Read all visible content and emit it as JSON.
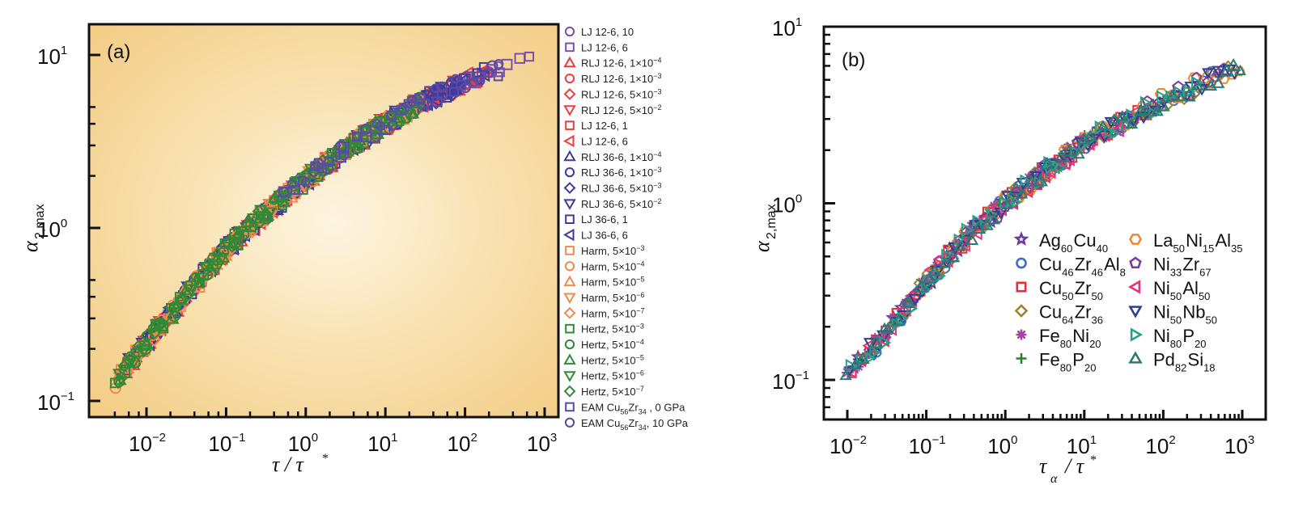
{
  "chart_data": [
    {
      "type": "scatter",
      "panel_label": "(a)",
      "xlabel": "τ / τ*",
      "ylabel": "α2,max",
      "xscale": "log",
      "yscale": "log",
      "xlim": [
        0.0025,
        1300
      ],
      "ylim": [
        0.09,
        15
      ],
      "xticks": [
        {
          "base": "10",
          "exp": "−2",
          "v": 0.01
        },
        {
          "base": "10",
          "exp": "−1",
          "v": 0.1
        },
        {
          "base": "10",
          "exp": "0",
          "v": 1
        },
        {
          "base": "10",
          "exp": "1",
          "v": 10
        },
        {
          "base": "10",
          "exp": "2",
          "v": 100
        },
        {
          "base": "10",
          "exp": "3",
          "v": 1000
        }
      ],
      "yticks": [
        {
          "base": "10",
          "exp": "−1",
          "v": 0.1
        },
        {
          "base": "10",
          "exp": "0",
          "v": 1
        },
        {
          "base": "10",
          "exp": "1",
          "v": 10
        }
      ],
      "background": "gradient-orange",
      "legend_position": "outside-right",
      "master_curve": [
        [
          0.004,
          0.13
        ],
        [
          0.01,
          0.22
        ],
        [
          0.03,
          0.4
        ],
        [
          0.1,
          0.75
        ],
        [
          0.3,
          1.2
        ],
        [
          1,
          1.9
        ],
        [
          3,
          2.8
        ],
        [
          10,
          4.0
        ],
        [
          30,
          5.4
        ],
        [
          100,
          7.0
        ],
        [
          300,
          8.5
        ],
        [
          600,
          10.0
        ]
      ],
      "series": [
        {
          "name": "LJ 12-6, 10",
          "label": "LJ 12-6, 10",
          "marker": "circle",
          "color": "#7a4fb0",
          "x_range": [
            0.5,
            300
          ]
        },
        {
          "name": "LJ 12-6, 6",
          "label": "LJ 12-6, 6",
          "marker": "square",
          "color": "#7a4fb0",
          "x_range": [
            1,
            700
          ]
        },
        {
          "name": "RLJ 12-6, 1e-4",
          "label": "RLJ 12-6, 1×10",
          "exp": "−4",
          "marker": "triangle-up",
          "color": "#ec3c3c",
          "x_range": [
            0.005,
            100
          ]
        },
        {
          "name": "RLJ 12-6, 1e-3",
          "label": "RLJ 12-6, 1×10",
          "exp": "−3",
          "marker": "circle",
          "color": "#ec3c3c",
          "x_range": [
            0.005,
            100
          ]
        },
        {
          "name": "RLJ 12-6, 5e-3",
          "label": "RLJ 12-6, 5×10",
          "exp": "−3",
          "marker": "diamond",
          "color": "#ec3c3c",
          "x_range": [
            0.005,
            100
          ]
        },
        {
          "name": "RLJ 12-6, 5e-2",
          "label": "RLJ 12-6, 5×10",
          "exp": "−2",
          "marker": "triangle-down",
          "color": "#ec3c3c",
          "x_range": [
            0.005,
            100
          ]
        },
        {
          "name": "LJ 12-6, 1",
          "label": "LJ 12-6, 1",
          "marker": "square",
          "color": "#ec3c3c",
          "x_range": [
            0.01,
            200
          ]
        },
        {
          "name": "LJ 12-6, 6 (red)",
          "label": "LJ 12-6, 6",
          "marker": "triangle-left",
          "color": "#ec3c3c",
          "x_range": [
            0.01,
            200
          ]
        },
        {
          "name": "RLJ 36-6, 1e-4",
          "label": "RLJ 36-6, 1×10",
          "exp": "−4",
          "marker": "triangle-up",
          "color": "#3b3ca0",
          "x_range": [
            0.005,
            100
          ]
        },
        {
          "name": "RLJ 36-6, 1e-3",
          "label": "RLJ 36-6, 1×10",
          "exp": "−3",
          "marker": "circle",
          "color": "#3b3ca0",
          "x_range": [
            0.005,
            100
          ]
        },
        {
          "name": "RLJ 36-6, 5e-3",
          "label": "RLJ 36-6, 5×10",
          "exp": "−3",
          "marker": "diamond",
          "color": "#3b3ca0",
          "x_range": [
            0.005,
            100
          ]
        },
        {
          "name": "RLJ 36-6, 5e-2",
          "label": "RLJ 36-6, 5×10",
          "exp": "−2",
          "marker": "triangle-down",
          "color": "#3b3ca0",
          "x_range": [
            0.005,
            100
          ]
        },
        {
          "name": "LJ 36-6, 1",
          "label": "LJ 36-6, 1",
          "marker": "square",
          "color": "#3b3ca0",
          "x_range": [
            0.01,
            200
          ]
        },
        {
          "name": "LJ 36-6, 6",
          "label": "LJ 36-6, 6",
          "marker": "triangle-left",
          "color": "#3b3ca0",
          "x_range": [
            0.01,
            200
          ]
        },
        {
          "name": "Harm, 5e-3",
          "label": "Harm, 5×10",
          "exp": "−3",
          "marker": "square",
          "color": "#f08a4b",
          "x_range": [
            0.004,
            30
          ]
        },
        {
          "name": "Harm, 5e-4",
          "label": "Harm, 5×10",
          "exp": "−4",
          "marker": "circle",
          "color": "#f08a4b",
          "x_range": [
            0.004,
            30
          ]
        },
        {
          "name": "Harm, 5e-5",
          "label": "Harm, 5×10",
          "exp": "−5",
          "marker": "triangle-up",
          "color": "#f08a4b",
          "x_range": [
            0.004,
            30
          ]
        },
        {
          "name": "Harm, 5e-6",
          "label": "Harm, 5×10",
          "exp": "−6",
          "marker": "triangle-down",
          "color": "#f08a4b",
          "x_range": [
            0.004,
            30
          ]
        },
        {
          "name": "Harm, 5e-7",
          "label": "Harm, 5×10",
          "exp": "−7",
          "marker": "diamond",
          "color": "#f08a4b",
          "x_range": [
            0.004,
            30
          ]
        },
        {
          "name": "Hertz, 5e-3",
          "label": "Hertz, 5×10",
          "exp": "−3",
          "marker": "square",
          "color": "#2f8a36",
          "x_range": [
            0.004,
            30
          ]
        },
        {
          "name": "Hertz, 5e-4",
          "label": "Hertz, 5×10",
          "exp": "−4",
          "marker": "circle",
          "color": "#2f8a36",
          "x_range": [
            0.004,
            30
          ]
        },
        {
          "name": "Hertz, 5e-5",
          "label": "Hertz, 5×10",
          "exp": "−5",
          "marker": "triangle-up",
          "color": "#2f8a36",
          "x_range": [
            0.004,
            30
          ]
        },
        {
          "name": "Hertz, 5e-6",
          "label": "Hertz, 5×10",
          "exp": "−6",
          "marker": "triangle-down",
          "color": "#2f8a36",
          "x_range": [
            0.004,
            30
          ]
        },
        {
          "name": "Hertz, 5e-7",
          "label": "Hertz, 5×10",
          "exp": "−7",
          "marker": "diamond",
          "color": "#2f8a36",
          "x_range": [
            0.004,
            30
          ]
        },
        {
          "name": "EAM Cu56Zr34, 0 GPa",
          "label": "EAM Cu",
          "sub1": "56",
          "mid": "Zr",
          "sub2": "34",
          "tail": " , 0 GPa",
          "marker": "square",
          "color": "#5a4aa8",
          "x_range": [
            0.5,
            300
          ]
        },
        {
          "name": "EAM Cu56Zr34, 10 GPa",
          "label": "EAM Cu",
          "sub1": "56",
          "mid": "Zr",
          "sub2": "34",
          "tail": ", 10 GPa",
          "marker": "circle",
          "color": "#5a4aa8",
          "x_range": [
            0.5,
            300
          ]
        }
      ]
    },
    {
      "type": "scatter",
      "panel_label": "(b)",
      "xlabel": "τα / τ*",
      "ylabel": "α2,max",
      "xscale": "log",
      "yscale": "log",
      "xlim": [
        0.005,
        1400
      ],
      "ylim": [
        0.06,
        10
      ],
      "xticks": [
        {
          "base": "10",
          "exp": "−2",
          "v": 0.01
        },
        {
          "base": "10",
          "exp": "−1",
          "v": 0.1
        },
        {
          "base": "10",
          "exp": "0",
          "v": 1
        },
        {
          "base": "10",
          "exp": "1",
          "v": 10
        },
        {
          "base": "10",
          "exp": "2",
          "v": 100
        },
        {
          "base": "10",
          "exp": "3",
          "v": 1000
        }
      ],
      "yticks": [
        {
          "base": "10",
          "exp": "−1",
          "v": 0.1
        },
        {
          "base": "10",
          "exp": "0",
          "v": 1
        },
        {
          "base": "10",
          "exp": "1",
          "v": 10
        }
      ],
      "legend_position": "inside-lower-right",
      "master_curve": [
        [
          0.009,
          0.1
        ],
        [
          0.03,
          0.18
        ],
        [
          0.1,
          0.36
        ],
        [
          0.3,
          0.62
        ],
        [
          1,
          1.0
        ],
        [
          3,
          1.5
        ],
        [
          10,
          2.2
        ],
        [
          30,
          2.9
        ],
        [
          100,
          3.8
        ],
        [
          300,
          4.8
        ],
        [
          1000,
          6.0
        ]
      ],
      "series": [
        {
          "name": "Ag60Cu40",
          "parts": [
            [
              "Ag",
              "60"
            ],
            [
              "Cu",
              "40"
            ]
          ],
          "marker": "star",
          "color": "#6a3d9a",
          "x_range": [
            0.01,
            30
          ]
        },
        {
          "name": "Cu46Zr46Al8",
          "parts": [
            [
              "Cu",
              "46"
            ],
            [
              "Zr",
              "46"
            ],
            [
              "Al",
              "8"
            ]
          ],
          "marker": "circle",
          "color": "#3a6fc4",
          "x_range": [
            0.02,
            600
          ]
        },
        {
          "name": "Cu50Zr50",
          "parts": [
            [
              "Cu",
              "50"
            ],
            [
              "Zr",
              "50"
            ]
          ],
          "marker": "square",
          "color": "#e2313a",
          "x_range": [
            0.01,
            100
          ]
        },
        {
          "name": "Cu64Zr36",
          "parts": [
            [
              "Cu",
              "64"
            ],
            [
              "Zr",
              "36"
            ]
          ],
          "marker": "diamond",
          "color": "#9c8430",
          "x_range": [
            0.02,
            800
          ]
        },
        {
          "name": "Fe80Ni20",
          "parts": [
            [
              "Fe",
              "80"
            ],
            [
              "Ni",
              "20"
            ]
          ],
          "marker": "asterisk",
          "color": "#a0489c",
          "x_range": [
            0.01,
            10
          ]
        },
        {
          "name": "Fe80P20",
          "parts": [
            [
              "Fe",
              "80"
            ],
            [
              "P",
              "20"
            ]
          ],
          "marker": "plus",
          "color": "#2f7d32",
          "x_range": [
            0.015,
            200
          ]
        },
        {
          "name": "La50Ni15Al35",
          "parts": [
            [
              "La",
              "50"
            ],
            [
              "Ni",
              "15"
            ],
            [
              "Al",
              "35"
            ]
          ],
          "marker": "hexagon",
          "color": "#f0892d",
          "x_range": [
            0.05,
            1100
          ]
        },
        {
          "name": "Ni33Zr67",
          "parts": [
            [
              "Ni",
              "33"
            ],
            [
              "Zr",
              "67"
            ]
          ],
          "marker": "pentagon",
          "color": "#7d3a9a",
          "x_range": [
            0.05,
            700
          ]
        },
        {
          "name": "Ni50Al50",
          "parts": [
            [
              "Ni",
              "50"
            ],
            [
              "Al",
              "50"
            ]
          ],
          "marker": "triangle-left",
          "color": "#e8317a",
          "x_range": [
            0.01,
            50
          ]
        },
        {
          "name": "Ni50Nb50",
          "parts": [
            [
              "Ni",
              "50"
            ],
            [
              "Nb",
              "50"
            ]
          ],
          "marker": "triangle-down",
          "color": "#2f3f8f",
          "x_range": [
            0.01,
            1000
          ]
        },
        {
          "name": "Ni80P20",
          "parts": [
            [
              "Ni",
              "80"
            ],
            [
              "P",
              "20"
            ]
          ],
          "marker": "triangle-right",
          "color": "#22a38a",
          "x_range": [
            0.01,
            300
          ]
        },
        {
          "name": "Pd82Si18",
          "parts": [
            [
              "Pd",
              "82"
            ],
            [
              "Si",
              "18"
            ]
          ],
          "marker": "triangle-up",
          "color": "#2b7a78",
          "x_range": [
            0.009,
            1200
          ]
        }
      ]
    }
  ]
}
